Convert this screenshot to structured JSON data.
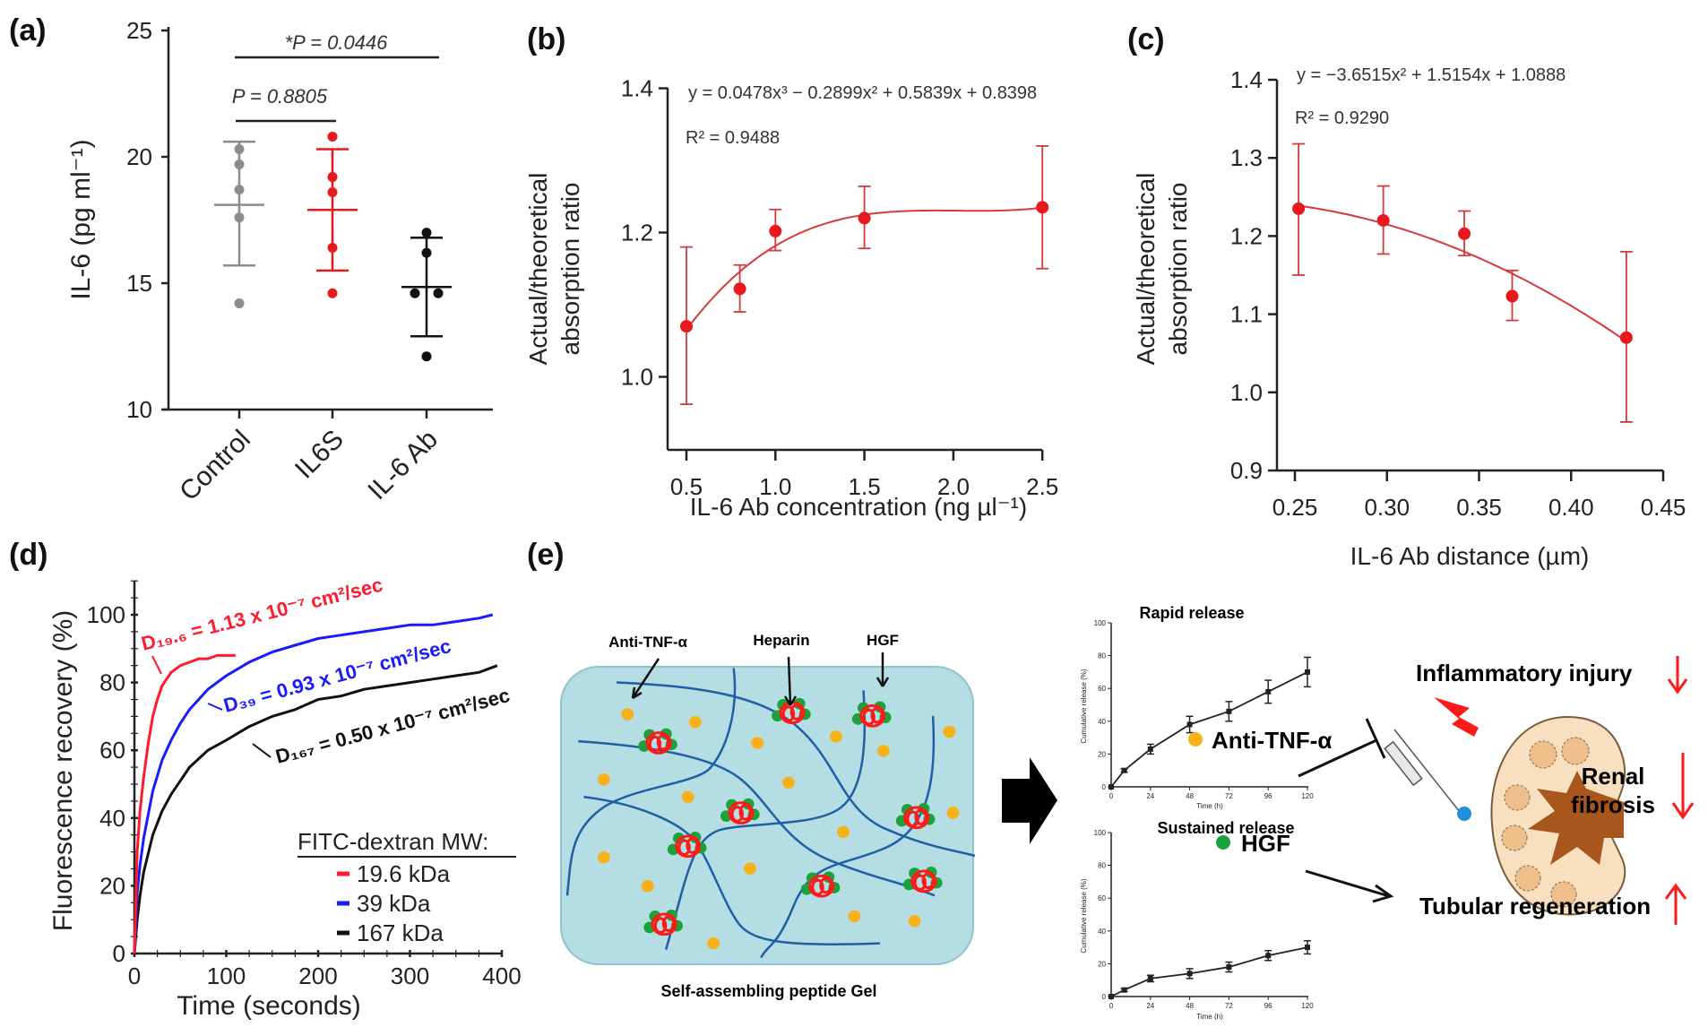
{
  "panel_labels": {
    "a": "(a)",
    "b": "(b)",
    "c": "(c)",
    "d": "(d)",
    "e": "(e)"
  },
  "colors": {
    "red": "#e8191c",
    "red_line": "#d43a3a",
    "grey": "#8c8c8c",
    "blue": "#1a1aff",
    "black": "#111111",
    "gel_fill": "#b5dde4",
    "fiber": "#1f5fa8",
    "yellow": "#f7b21b",
    "green": "#1aa33a",
    "kidney": "#f7dfc0",
    "hilum": "#a8561c"
  },
  "chart_data": [
    {
      "id": "a",
      "type": "scatter",
      "ylabel": "IL-6 (pg ml⁻¹)",
      "ylim": [
        10,
        25
      ],
      "yticks": [
        10,
        15,
        20,
        25
      ],
      "categories": [
        "Control",
        "IL6S",
        "IL-6 Ab"
      ],
      "groups": [
        {
          "name": "Control",
          "color": "#8c8c8c",
          "points": [
            20.3,
            19.7,
            18.7,
            17.6,
            14.2
          ],
          "mean": 18.1,
          "sd_low": 15.7,
          "sd_high": 20.6
        },
        {
          "name": "IL6S",
          "color": "#e8191c",
          "points": [
            20.8,
            19.2,
            18.6,
            16.4,
            14.6
          ],
          "mean": 17.9,
          "sd_low": 15.5,
          "sd_high": 20.3
        },
        {
          "name": "IL-6 Ab",
          "color": "#111111",
          "points": [
            17.0,
            16.2,
            14.6,
            14.6,
            12.1
          ],
          "mean": 14.85,
          "sd_low": 12.9,
          "sd_high": 16.8
        }
      ],
      "comparisons": [
        {
          "from": "Control",
          "to": "IL6S",
          "label": "P = 0.8805"
        },
        {
          "from": "Control",
          "to": "IL-6 Ab",
          "label": "*P = 0.0446"
        }
      ]
    },
    {
      "id": "b",
      "type": "scatter",
      "xlabel": "IL-6 Ab concentration (ng µl⁻¹)",
      "ylabel_lines": [
        "Actual/theoretical",
        "absorption ratio"
      ],
      "xlim": [
        0.5,
        2.5
      ],
      "ylim": [
        0.9,
        1.4
      ],
      "xticks": [
        "0.5",
        "1.0",
        "1.5",
        "2.0",
        "2.5"
      ],
      "yticks": [
        "1.0",
        "1.2",
        "1.4"
      ],
      "x": [
        0.5,
        0.8,
        1.0,
        1.5,
        2.5
      ],
      "y": [
        1.07,
        1.122,
        1.202,
        1.22,
        1.235
      ],
      "err_low": [
        0.962,
        1.09,
        1.175,
        1.178,
        1.15
      ],
      "err_high": [
        1.18,
        1.155,
        1.232,
        1.264,
        1.32
      ],
      "fit": {
        "coefficients": [
          0.0478,
          -0.2899,
          0.5839,
          0.8398
        ],
        "equation": "y = 0.0478x³ − 0.2899x² + 0.5839x + 0.8398",
        "r2": "R² = 0.9488"
      }
    },
    {
      "id": "c",
      "type": "scatter",
      "xlabel": "IL-6 Ab distance (µm)",
      "ylabel_lines": [
        "Actual/theoretical",
        "absorption ratio"
      ],
      "xlim": [
        0.25,
        0.45
      ],
      "ylim": [
        0.9,
        1.4
      ],
      "xticks": [
        "0.25",
        "0.30",
        "0.35",
        "0.40",
        "0.45"
      ],
      "yticks": [
        "0.9",
        "1.0",
        "1.1",
        "1.2",
        "1.3",
        "1.4"
      ],
      "x": [
        0.252,
        0.298,
        0.342,
        0.368,
        0.43
      ],
      "y": [
        1.235,
        1.22,
        1.203,
        1.123,
        1.07
      ],
      "err_low": [
        1.15,
        1.177,
        1.175,
        1.092,
        0.962
      ],
      "err_high": [
        1.318,
        1.264,
        1.232,
        1.156,
        1.18
      ],
      "fit": {
        "coefficients": [
          -3.6515,
          1.5154,
          1.0888
        ],
        "equation": "y = −3.6515x² + 1.5154x + 1.0888",
        "r2": "R² = 0.9290"
      }
    },
    {
      "id": "d",
      "type": "line",
      "xlabel": "Time (seconds)",
      "ylabel": "Fluorescence recovery  (%)",
      "xlim": [
        0,
        400
      ],
      "ylim": [
        0,
        110
      ],
      "xticks": [
        "0",
        "100",
        "200",
        "300",
        "400"
      ],
      "yticks": [
        "0",
        "20",
        "40",
        "60",
        "80",
        "100"
      ],
      "legend_title": "FITC-dextran MW:",
      "legend_position": "bottom-right",
      "series": [
        {
          "name": "19.6 kDa",
          "color": "#ff1a2e",
          "annotation": "D₁₉.₆ = 1.13 x 10⁻⁷ cm²/sec",
          "x": [
            0,
            3,
            6,
            10,
            15,
            20,
            25,
            30,
            40,
            50,
            60,
            70,
            80,
            90,
            100,
            110
          ],
          "y": [
            0,
            30,
            42,
            52,
            62,
            70,
            75,
            79,
            83,
            85,
            86,
            87,
            87,
            88,
            88,
            88
          ]
        },
        {
          "name": "39 kDa",
          "color": "#1a1aff",
          "annotation": "D₃₉ = 0.93 x 10⁻⁷ cm²/sec",
          "x": [
            0,
            3,
            6,
            10,
            20,
            30,
            40,
            50,
            60,
            80,
            100,
            125,
            150,
            175,
            200,
            225,
            250,
            275,
            300,
            325,
            350,
            375,
            390
          ],
          "y": [
            0,
            18,
            26,
            34,
            48,
            57,
            63,
            68,
            72,
            78,
            82,
            86,
            89,
            91,
            93,
            94,
            95,
            96,
            97,
            97,
            98,
            99,
            100
          ]
        },
        {
          "name": "167 kDa",
          "color": "#111111",
          "annotation": "D₁₆₇ = 0.50 x 10⁻⁷ cm²/sec",
          "x": [
            0,
            3,
            6,
            10,
            20,
            30,
            40,
            50,
            60,
            80,
            100,
            125,
            150,
            175,
            200,
            225,
            250,
            275,
            300,
            325,
            350,
            375,
            395
          ],
          "y": [
            0,
            10,
            17,
            24,
            35,
            42,
            47,
            51,
            55,
            60,
            63,
            67,
            70,
            72,
            75,
            76,
            78,
            79,
            80,
            81,
            82,
            83,
            85
          ]
        }
      ]
    },
    {
      "id": "e-rapid",
      "type": "line",
      "title": "Rapid release",
      "xlabel": "Time (h)",
      "ylabel": "Cumulative release (%)",
      "xlim": [
        0,
        120
      ],
      "ylim": [
        0,
        100
      ],
      "xticks": [
        "0",
        "24",
        "48",
        "72",
        "96",
        "120"
      ],
      "yticks": [
        "0",
        "20",
        "40",
        "60",
        "80",
        "100"
      ],
      "x": [
        0,
        8,
        24,
        48,
        72,
        96,
        120
      ],
      "y": [
        0,
        10,
        23,
        38,
        46,
        58,
        70
      ],
      "err": [
        0,
        1,
        3,
        5,
        6,
        7,
        9
      ]
    },
    {
      "id": "e-sustained",
      "type": "line",
      "title": "Sustained release",
      "xlabel": "Time (h)",
      "ylabel": "Cumulative release (%)",
      "xlim": [
        0,
        120
      ],
      "ylim": [
        0,
        100
      ],
      "xticks": [
        "0",
        "24",
        "48",
        "72",
        "96",
        "120"
      ],
      "yticks": [
        "0",
        "20",
        "40",
        "60",
        "80",
        "100"
      ],
      "x": [
        0,
        8,
        24,
        48,
        72,
        96,
        120
      ],
      "y": [
        0,
        4,
        11,
        14,
        18,
        25,
        30
      ],
      "err": [
        0,
        1,
        2,
        3,
        3,
        3,
        4
      ]
    }
  ],
  "diagram": {
    "gel_label": "Self-assembling peptide Gel",
    "gel_callouts": [
      "Anti-TNF-α",
      "Heparin",
      "HGF"
    ],
    "legend_anti_tnf": "Anti-TNF-α",
    "legend_hgf": "HGF",
    "outcomes": {
      "inflammatory": "Inflammatory injury",
      "renal_1": "Renal",
      "renal_2": "fibrosis",
      "tubular": "Tubular regeneration"
    },
    "icons": [
      "syringe-icon",
      "kidney-icon",
      "lightning-icon",
      "arrow-right-icon",
      "arrow-down-icon",
      "arrow-up-icon"
    ]
  }
}
